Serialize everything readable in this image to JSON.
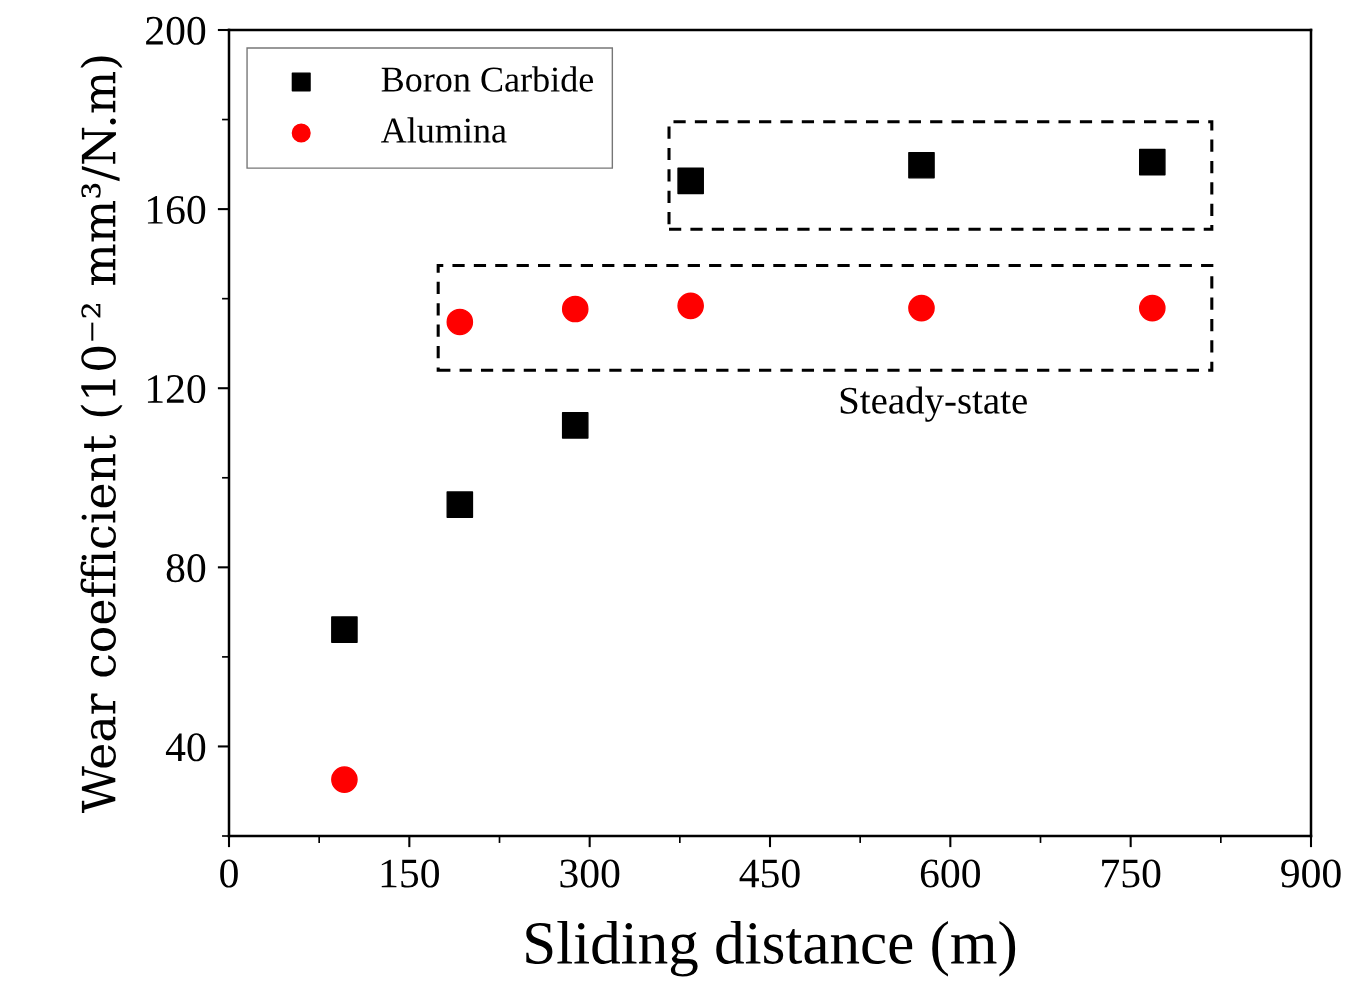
{
  "chart_data": {
    "type": "scatter",
    "xlabel": "Sliding distance (m)",
    "ylabel": "Wear coefficient (10⁻² mm³/N.m)",
    "x": [
      96,
      192,
      288,
      384,
      576,
      768
    ],
    "series": [
      {
        "name": "Boron Carbide",
        "color": "#000000",
        "marker": "square",
        "values": [
          66.1,
          94,
          111.7,
          166.3,
          169.8,
          170.5
        ]
      },
      {
        "name": "Alumina",
        "color": "#ff0000",
        "marker": "circle",
        "values": [
          32.6,
          134.8,
          137.7,
          138.4,
          137.9,
          137.9
        ]
      }
    ],
    "annotations": [
      "Steady-state"
    ],
    "xlim": [
      0,
      900
    ],
    "xticks": [
      0,
      150,
      300,
      450,
      600,
      750,
      900
    ],
    "ylim": [
      20,
      200
    ],
    "yticks": [
      40,
      80,
      120,
      160,
      200
    ],
    "grid": false,
    "legend": "top left"
  }
}
